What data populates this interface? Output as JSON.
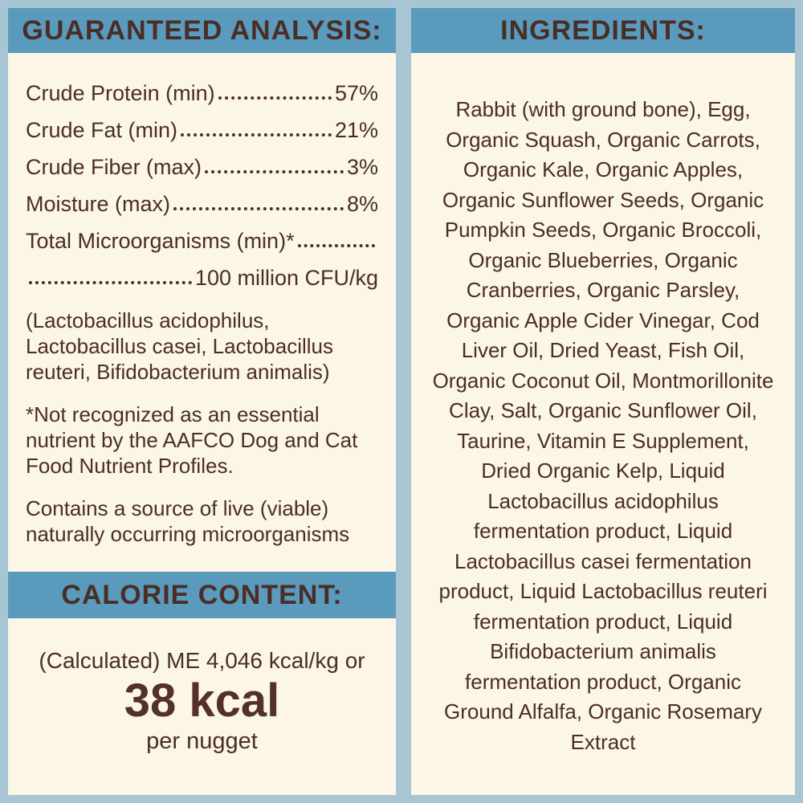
{
  "colors": {
    "outer_border_blue": "#a7c5d3",
    "header_bar_blue": "#5a9abd",
    "panel_cream": "#fcf6e6",
    "text_brown": "#4a2e26"
  },
  "left": {
    "header": "GUARANTEED ANALYSIS:",
    "analysis_rows": [
      {
        "label": "Crude Protein (min)",
        "value": "57%"
      },
      {
        "label": "Crude Fat (min)",
        "value": "21%"
      },
      {
        "label": "Crude Fiber (max)",
        "value": "3%"
      },
      {
        "label": "Moisture (max)",
        "value": "8%"
      },
      {
        "label": "Total Microorganisms (min)*",
        "value": ""
      },
      {
        "label": "",
        "value": "100 million CFU/kg"
      }
    ],
    "paragraphs": [
      "(Lactobacillus acidophilus, Lactobacillus casei, Lactobacillus reuteri, Bifidobacterium animalis)",
      "*Not recognized as an essential nutrient by the AAFCO Dog and Cat Food Nutrient Profiles.",
      "Contains a source of live (viable) naturally occurring microorganisms"
    ],
    "calorie": {
      "header": "CALORIE CONTENT:",
      "line1": "(Calculated) ME 4,046 kcal/kg or",
      "value": "38 kcal",
      "unit": "per nugget"
    }
  },
  "right": {
    "header": "INGREDIENTS:",
    "ingredients": "Rabbit (with ground bone), Egg, Organic Squash, Organic Carrots, Organic Kale, Organic Apples, Organic Sunflower Seeds, Organic Pumpkin Seeds, Organic Broccoli, Organic Blueberries, Organic Cranberries, Organic Parsley, Organic Apple Cider Vinegar, Cod Liver Oil, Dried Yeast, Fish Oil, Organic Coconut Oil, Montmorillonite Clay, Salt, Organic Sunflower Oil, Taurine, Vitamin E Supplement, Dried Organic Kelp, Liquid Lactobacillus acidophilus fermentation product, Liquid Lactobacillus casei fermentation product, Liquid Lactobacillus reuteri fermentation product, Liquid Bifidobacterium animalis fermentation product, Organic Ground Alfalfa, Organic Rosemary Extract"
  }
}
